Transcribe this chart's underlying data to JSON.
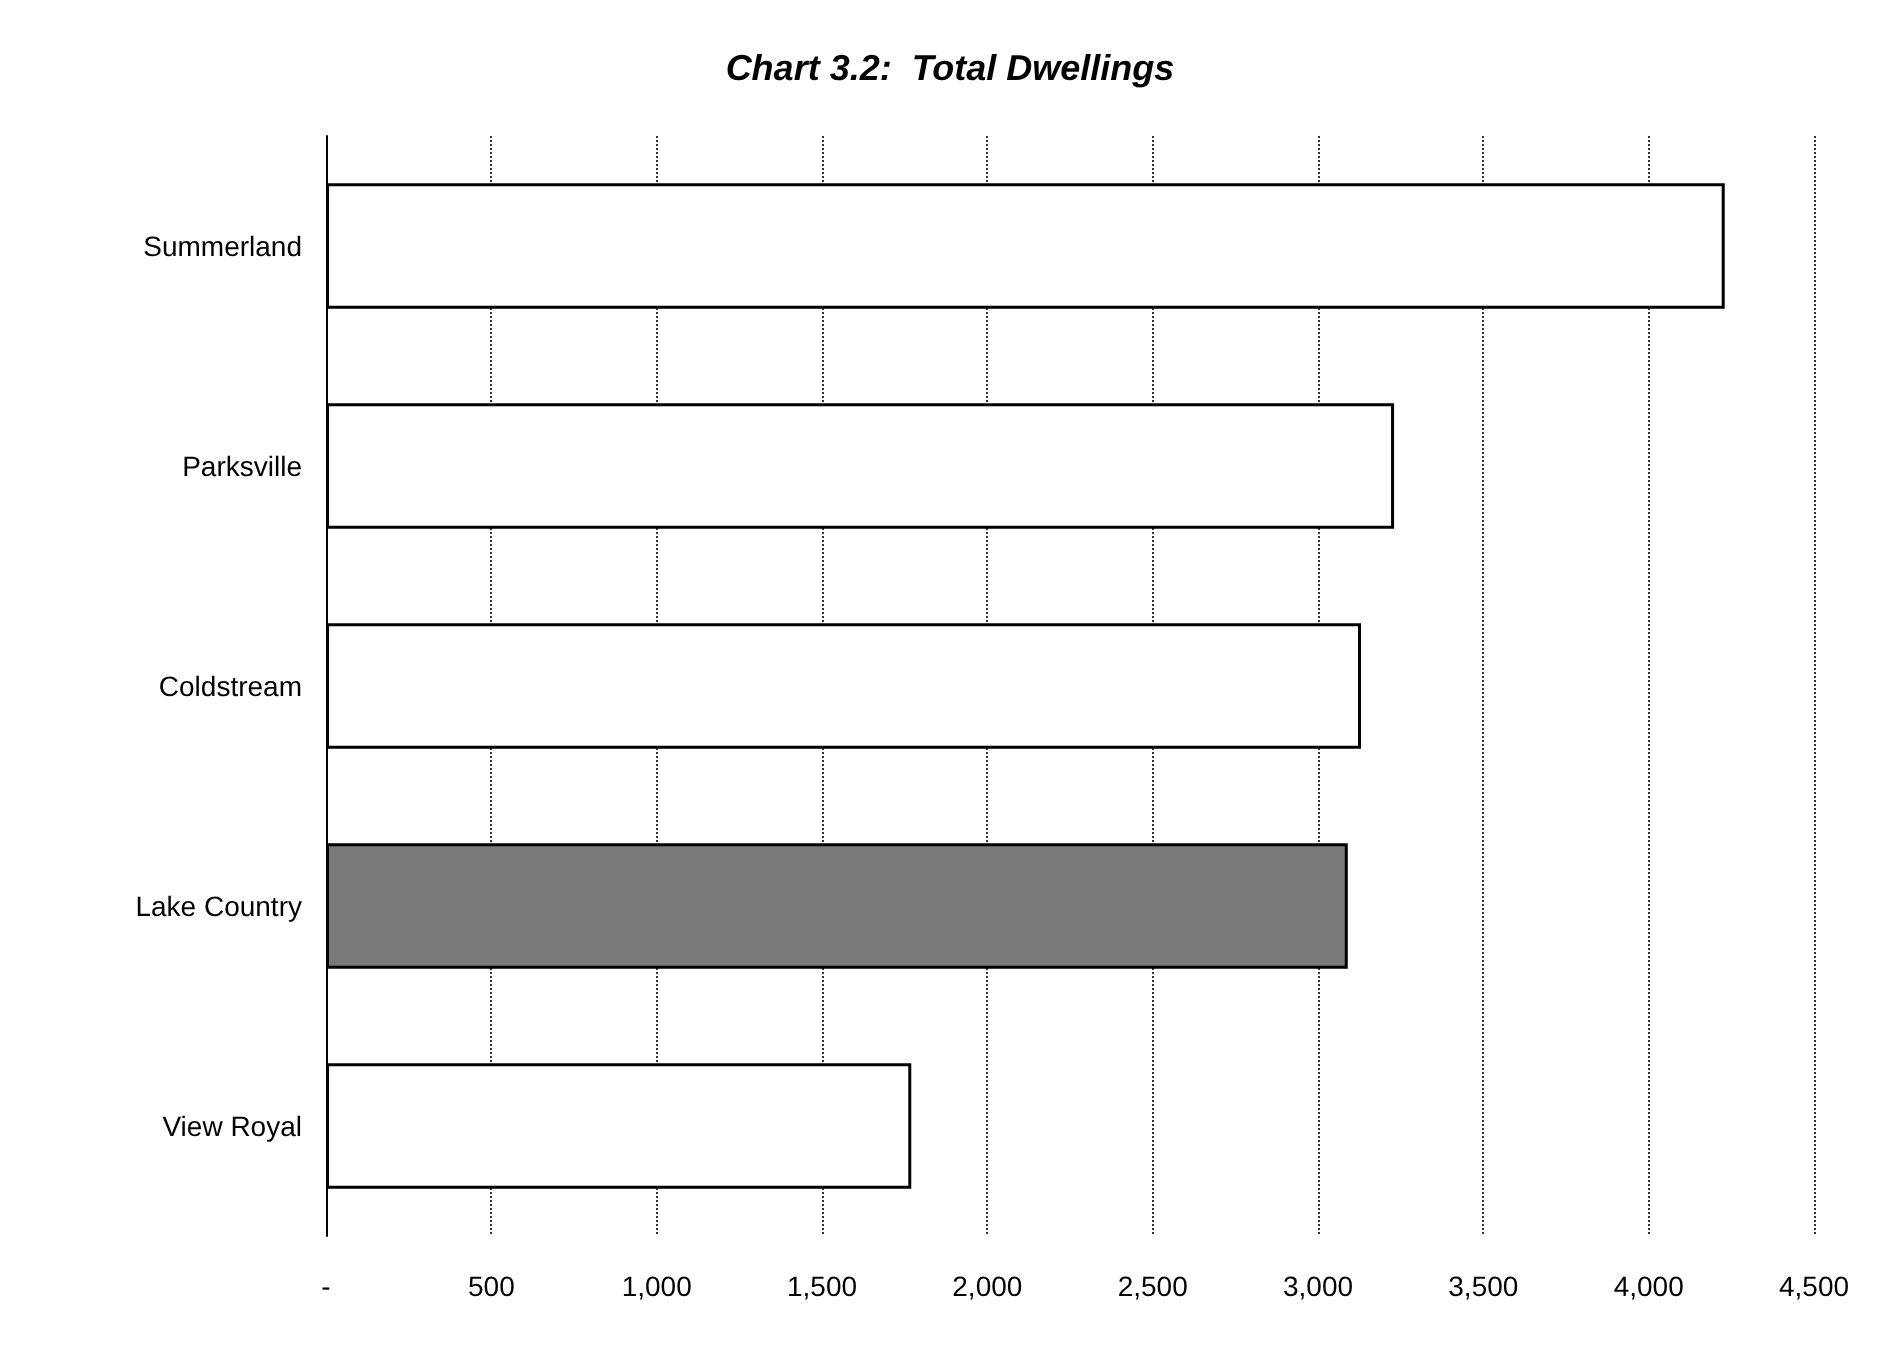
{
  "chart_data": {
    "type": "bar",
    "orientation": "horizontal",
    "title": "Chart 3.2:  Total Dwellings",
    "categories": [
      "Summerland",
      "Parksville",
      "Coldstream",
      "Lake Country",
      "View Royal"
    ],
    "values": [
      4230,
      3230,
      3130,
      3090,
      1770
    ],
    "colors": [
      "#ffffff",
      "#ffffff",
      "#ffffff",
      "#7a7a7a",
      "#ffffff"
    ],
    "xlim": [
      0,
      4500
    ],
    "xticks": [
      {
        "value": 0,
        "label": "-"
      },
      {
        "value": 500,
        "label": "500"
      },
      {
        "value": 1000,
        "label": "1,000"
      },
      {
        "value": 1500,
        "label": "1,500"
      },
      {
        "value": 2000,
        "label": "2,000"
      },
      {
        "value": 2500,
        "label": "2,500"
      },
      {
        "value": 3000,
        "label": "3,000"
      },
      {
        "value": 3500,
        "label": "3,500"
      },
      {
        "value": 4000,
        "label": "4,000"
      },
      {
        "value": 4500,
        "label": "4,500"
      }
    ],
    "grid": "x"
  }
}
